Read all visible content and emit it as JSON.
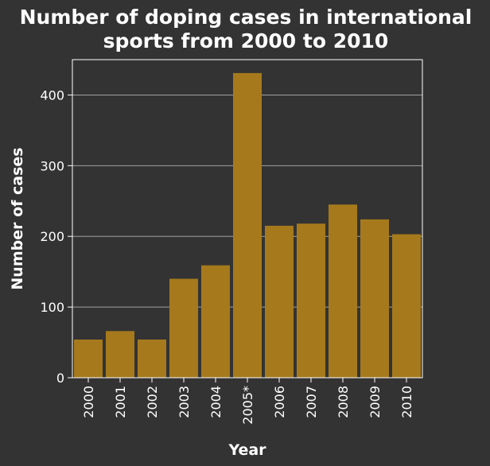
{
  "chart_data": {
    "type": "bar",
    "title_lines": [
      "Number of doping cases in international",
      "sports from 2000 to 2010"
    ],
    "xlabel": "Year",
    "ylabel": "Number of cases",
    "categories": [
      "2000",
      "2001",
      "2002",
      "2003",
      "2004",
      "2005*",
      "2006",
      "2007",
      "2008",
      "2009",
      "2010"
    ],
    "values": [
      54,
      66,
      54,
      140,
      159,
      431,
      215,
      218,
      245,
      224,
      203
    ],
    "ylim": [
      0,
      450
    ],
    "yticks": [
      0,
      100,
      200,
      300,
      400
    ],
    "grid": true,
    "colors": {
      "bar": "#a67a1c",
      "background": "#333333",
      "grid": "#a0a0a0",
      "text": "#ffffff"
    }
  }
}
